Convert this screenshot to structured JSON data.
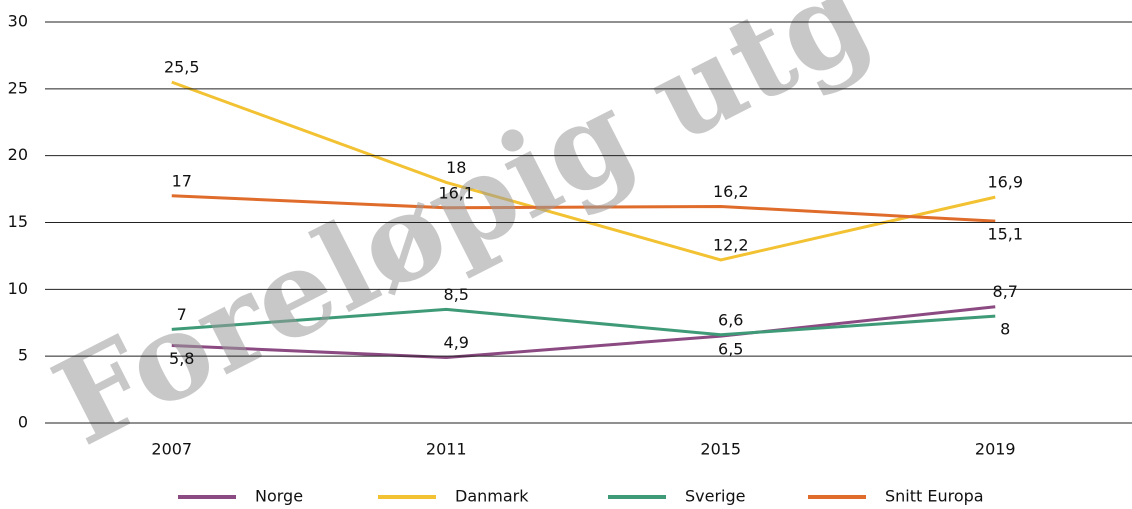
{
  "chart_data": {
    "type": "line",
    "categories": [
      "2007",
      "2011",
      "2015",
      "2019"
    ],
    "series": [
      {
        "name": "Norge",
        "color": "#8b4a82",
        "values": [
          5.8,
          4.9,
          6.5,
          8.7
        ],
        "value_labels": [
          "5,8",
          "4,9",
          "6,5",
          "8,7"
        ]
      },
      {
        "name": "Danmark",
        "color": "#f2c232",
        "values": [
          25.5,
          18,
          12.2,
          16.9
        ],
        "value_labels": [
          "25,5",
          "18",
          "12,2",
          "16,9"
        ]
      },
      {
        "name": "Sverige",
        "color": "#3f9a78",
        "values": [
          7,
          8.5,
          6.6,
          8
        ],
        "value_labels": [
          "7",
          "8,5",
          "6,6",
          "8"
        ]
      },
      {
        "name": "Snitt Europa",
        "color": "#e06c2c",
        "values": [
          17,
          16.1,
          16.2,
          15.1
        ],
        "value_labels": [
          "17",
          "16,1",
          "16,2",
          "15,1"
        ]
      }
    ],
    "ylim": [
      0,
      30
    ],
    "yticks": [
      0,
      5,
      10,
      15,
      20,
      25,
      30
    ],
    "grid": true,
    "legend": "bottom",
    "watermark": "Foreløpig utg"
  }
}
